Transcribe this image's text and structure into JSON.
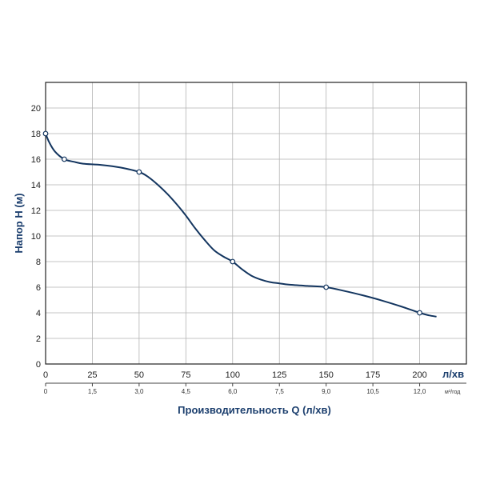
{
  "chart_data": {
    "type": "line",
    "xlabel": "Производительность Q (л/хв)",
    "ylabel": "Напор Н (м)",
    "x_unit": "л/хв",
    "x2_unit": "м³/год",
    "xlim": [
      0,
      225
    ],
    "ylim": [
      0,
      22
    ],
    "grid": true,
    "x_ticks": [
      "0",
      "25",
      "50",
      "75",
      "100",
      "125",
      "150",
      "175",
      "200"
    ],
    "x2_ticks": [
      "0",
      "1,5",
      "3,0",
      "4,5",
      "6,0",
      "7,5",
      "9,0",
      "10,5",
      "12,0"
    ],
    "y_ticks": [
      "0",
      "2",
      "4",
      "6",
      "8",
      "10",
      "12",
      "14",
      "16",
      "18",
      "20"
    ],
    "series": [
      {
        "color": "#13355f",
        "curve": [
          {
            "x": 0,
            "y": 18
          },
          {
            "x": 2,
            "y": 17.3
          },
          {
            "x": 5,
            "y": 16.6
          },
          {
            "x": 10,
            "y": 16.0
          },
          {
            "x": 15,
            "y": 15.8
          },
          {
            "x": 20,
            "y": 15.65
          },
          {
            "x": 30,
            "y": 15.55
          },
          {
            "x": 40,
            "y": 15.35
          },
          {
            "x": 50,
            "y": 15.0
          },
          {
            "x": 55,
            "y": 14.6
          },
          {
            "x": 60,
            "y": 14.0
          },
          {
            "x": 65,
            "y": 13.3
          },
          {
            "x": 70,
            "y": 12.5
          },
          {
            "x": 75,
            "y": 11.6
          },
          {
            "x": 80,
            "y": 10.6
          },
          {
            "x": 85,
            "y": 9.7
          },
          {
            "x": 90,
            "y": 8.9
          },
          {
            "x": 95,
            "y": 8.4
          },
          {
            "x": 100,
            "y": 8.0
          },
          {
            "x": 105,
            "y": 7.4
          },
          {
            "x": 110,
            "y": 6.9
          },
          {
            "x": 115,
            "y": 6.6
          },
          {
            "x": 120,
            "y": 6.4
          },
          {
            "x": 125,
            "y": 6.3
          },
          {
            "x": 130,
            "y": 6.2
          },
          {
            "x": 140,
            "y": 6.1
          },
          {
            "x": 150,
            "y": 6.0
          },
          {
            "x": 160,
            "y": 5.7
          },
          {
            "x": 170,
            "y": 5.35
          },
          {
            "x": 180,
            "y": 4.95
          },
          {
            "x": 190,
            "y": 4.5
          },
          {
            "x": 200,
            "y": 4.0
          },
          {
            "x": 205,
            "y": 3.8
          },
          {
            "x": 209,
            "y": 3.7
          }
        ],
        "markers": [
          {
            "x": 0,
            "y": 18
          },
          {
            "x": 10,
            "y": 16
          },
          {
            "x": 50,
            "y": 15
          },
          {
            "x": 100,
            "y": 8
          },
          {
            "x": 150,
            "y": 6
          },
          {
            "x": 200,
            "y": 4
          }
        ]
      }
    ]
  }
}
